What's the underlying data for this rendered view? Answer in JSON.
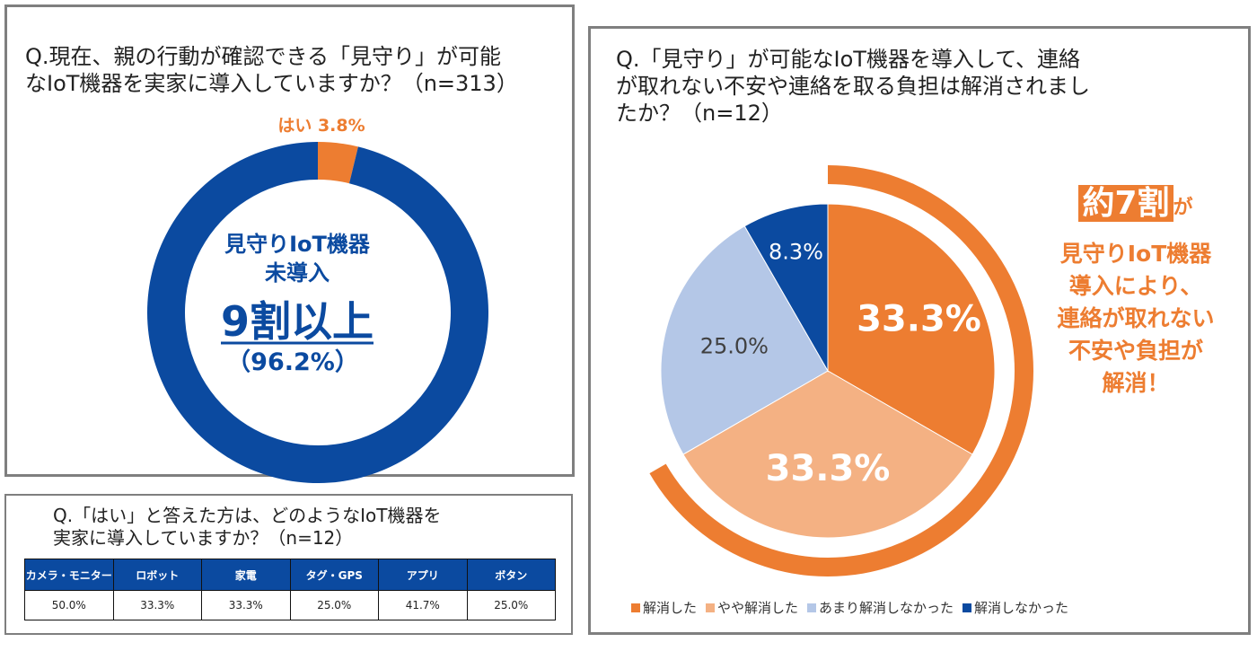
{
  "panel_a": {
    "title": "Q.現在、親の行動が確認できる「見守り」が可能\nなIoT機器を実家に導入していますか？（n=313）",
    "center_line1": "見守りIoT機器",
    "center_line2": "未導入",
    "center_big": "9割以上",
    "center_pct": "（96.2%）"
  },
  "panel_b": {
    "title": "Q.「はい」と答えた方は、どのようなIoT機器を\n実家に導入していますか？（n=12）"
  },
  "panel_c": {
    "title": "Q.「見守り」が可能なIoT機器を導入して、連絡\nが取れない不安や連絡を取る負担は解消されまし\nたか？（n=12）",
    "cta_pre": "約7割",
    "cta_ga": "が",
    "cta_msg": "見守りIoT機器\n導入により、\n連絡が取れない\n不安や負担が\n解消！"
  },
  "colors": {
    "orange": "#ed7d31",
    "light_orange": "#f4b183",
    "light_blue": "#b4c7e7",
    "navy": "#0b4aa0"
  },
  "chart_data": [
    {
      "type": "pie",
      "variant": "donut",
      "labels": [
        "はい",
        ""
      ],
      "values": [
        3.8,
        96.2
      ],
      "data_labels": [
        "はい 3.8%",
        ""
      ],
      "colors": [
        "#ed7d31",
        "#0b4aa0"
      ]
    },
    {
      "type": "table",
      "columns": [
        "カメラ・モニター",
        "ロボット",
        "家電",
        "タグ・GPS",
        "アプリ",
        "ボタン"
      ],
      "rows": [
        [
          "50.0%",
          "33.3%",
          "33.3%",
          "25.0%",
          "41.7%",
          "25.0%"
        ]
      ]
    },
    {
      "type": "pie",
      "labels": [
        "解消した",
        "やや解消した",
        "あまり解消しなかった",
        "解消しなかった"
      ],
      "values": [
        33.3,
        33.3,
        25.0,
        8.3
      ],
      "data_labels": [
        "33.3%",
        "33.3%",
        "25.0%",
        "8.3%"
      ],
      "colors": [
        "#ed7d31",
        "#f4b183",
        "#b4c7e7",
        "#0b4aa0"
      ],
      "highlight_arc_pct": 66.7,
      "legend": "bottom"
    }
  ]
}
